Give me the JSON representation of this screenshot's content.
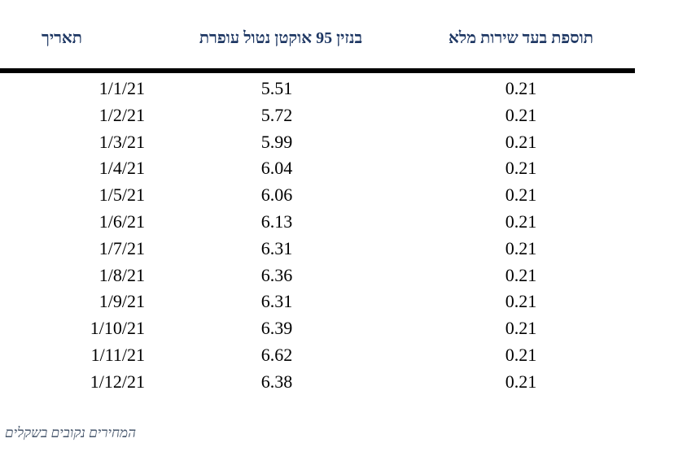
{
  "table": {
    "headers": {
      "date": "תאריך",
      "price": "בנזין 95 אוקטן נטול עופרת",
      "service": "תוספת בעד שירות מלא"
    },
    "rows": [
      {
        "date": "1/1/21",
        "price": "5.51",
        "service": "0.21"
      },
      {
        "date": "1/2/21",
        "price": "5.72",
        "service": "0.21"
      },
      {
        "date": "1/3/21",
        "price": "5.99",
        "service": "0.21"
      },
      {
        "date": "1/4/21",
        "price": "6.04",
        "service": "0.21"
      },
      {
        "date": "1/5/21",
        "price": "6.06",
        "service": "0.21"
      },
      {
        "date": "1/6/21",
        "price": "6.13",
        "service": "0.21"
      },
      {
        "date": "1/7/21",
        "price": "6.31",
        "service": "0.21"
      },
      {
        "date": "1/8/21",
        "price": "6.36",
        "service": "0.21"
      },
      {
        "date": "1/9/21",
        "price": "6.31",
        "service": "0.21"
      },
      {
        "date": "1/10/21",
        "price": "6.39",
        "service": "0.21"
      },
      {
        "date": "1/11/21",
        "price": "6.62",
        "service": "0.21"
      },
      {
        "date": "1/12/21",
        "price": "6.38",
        "service": "0.21"
      }
    ]
  },
  "footnote": "המחירים נקובים בשקלים",
  "colors": {
    "header": "#1f3864",
    "rule": "#000000",
    "footnote": "#44546a"
  }
}
